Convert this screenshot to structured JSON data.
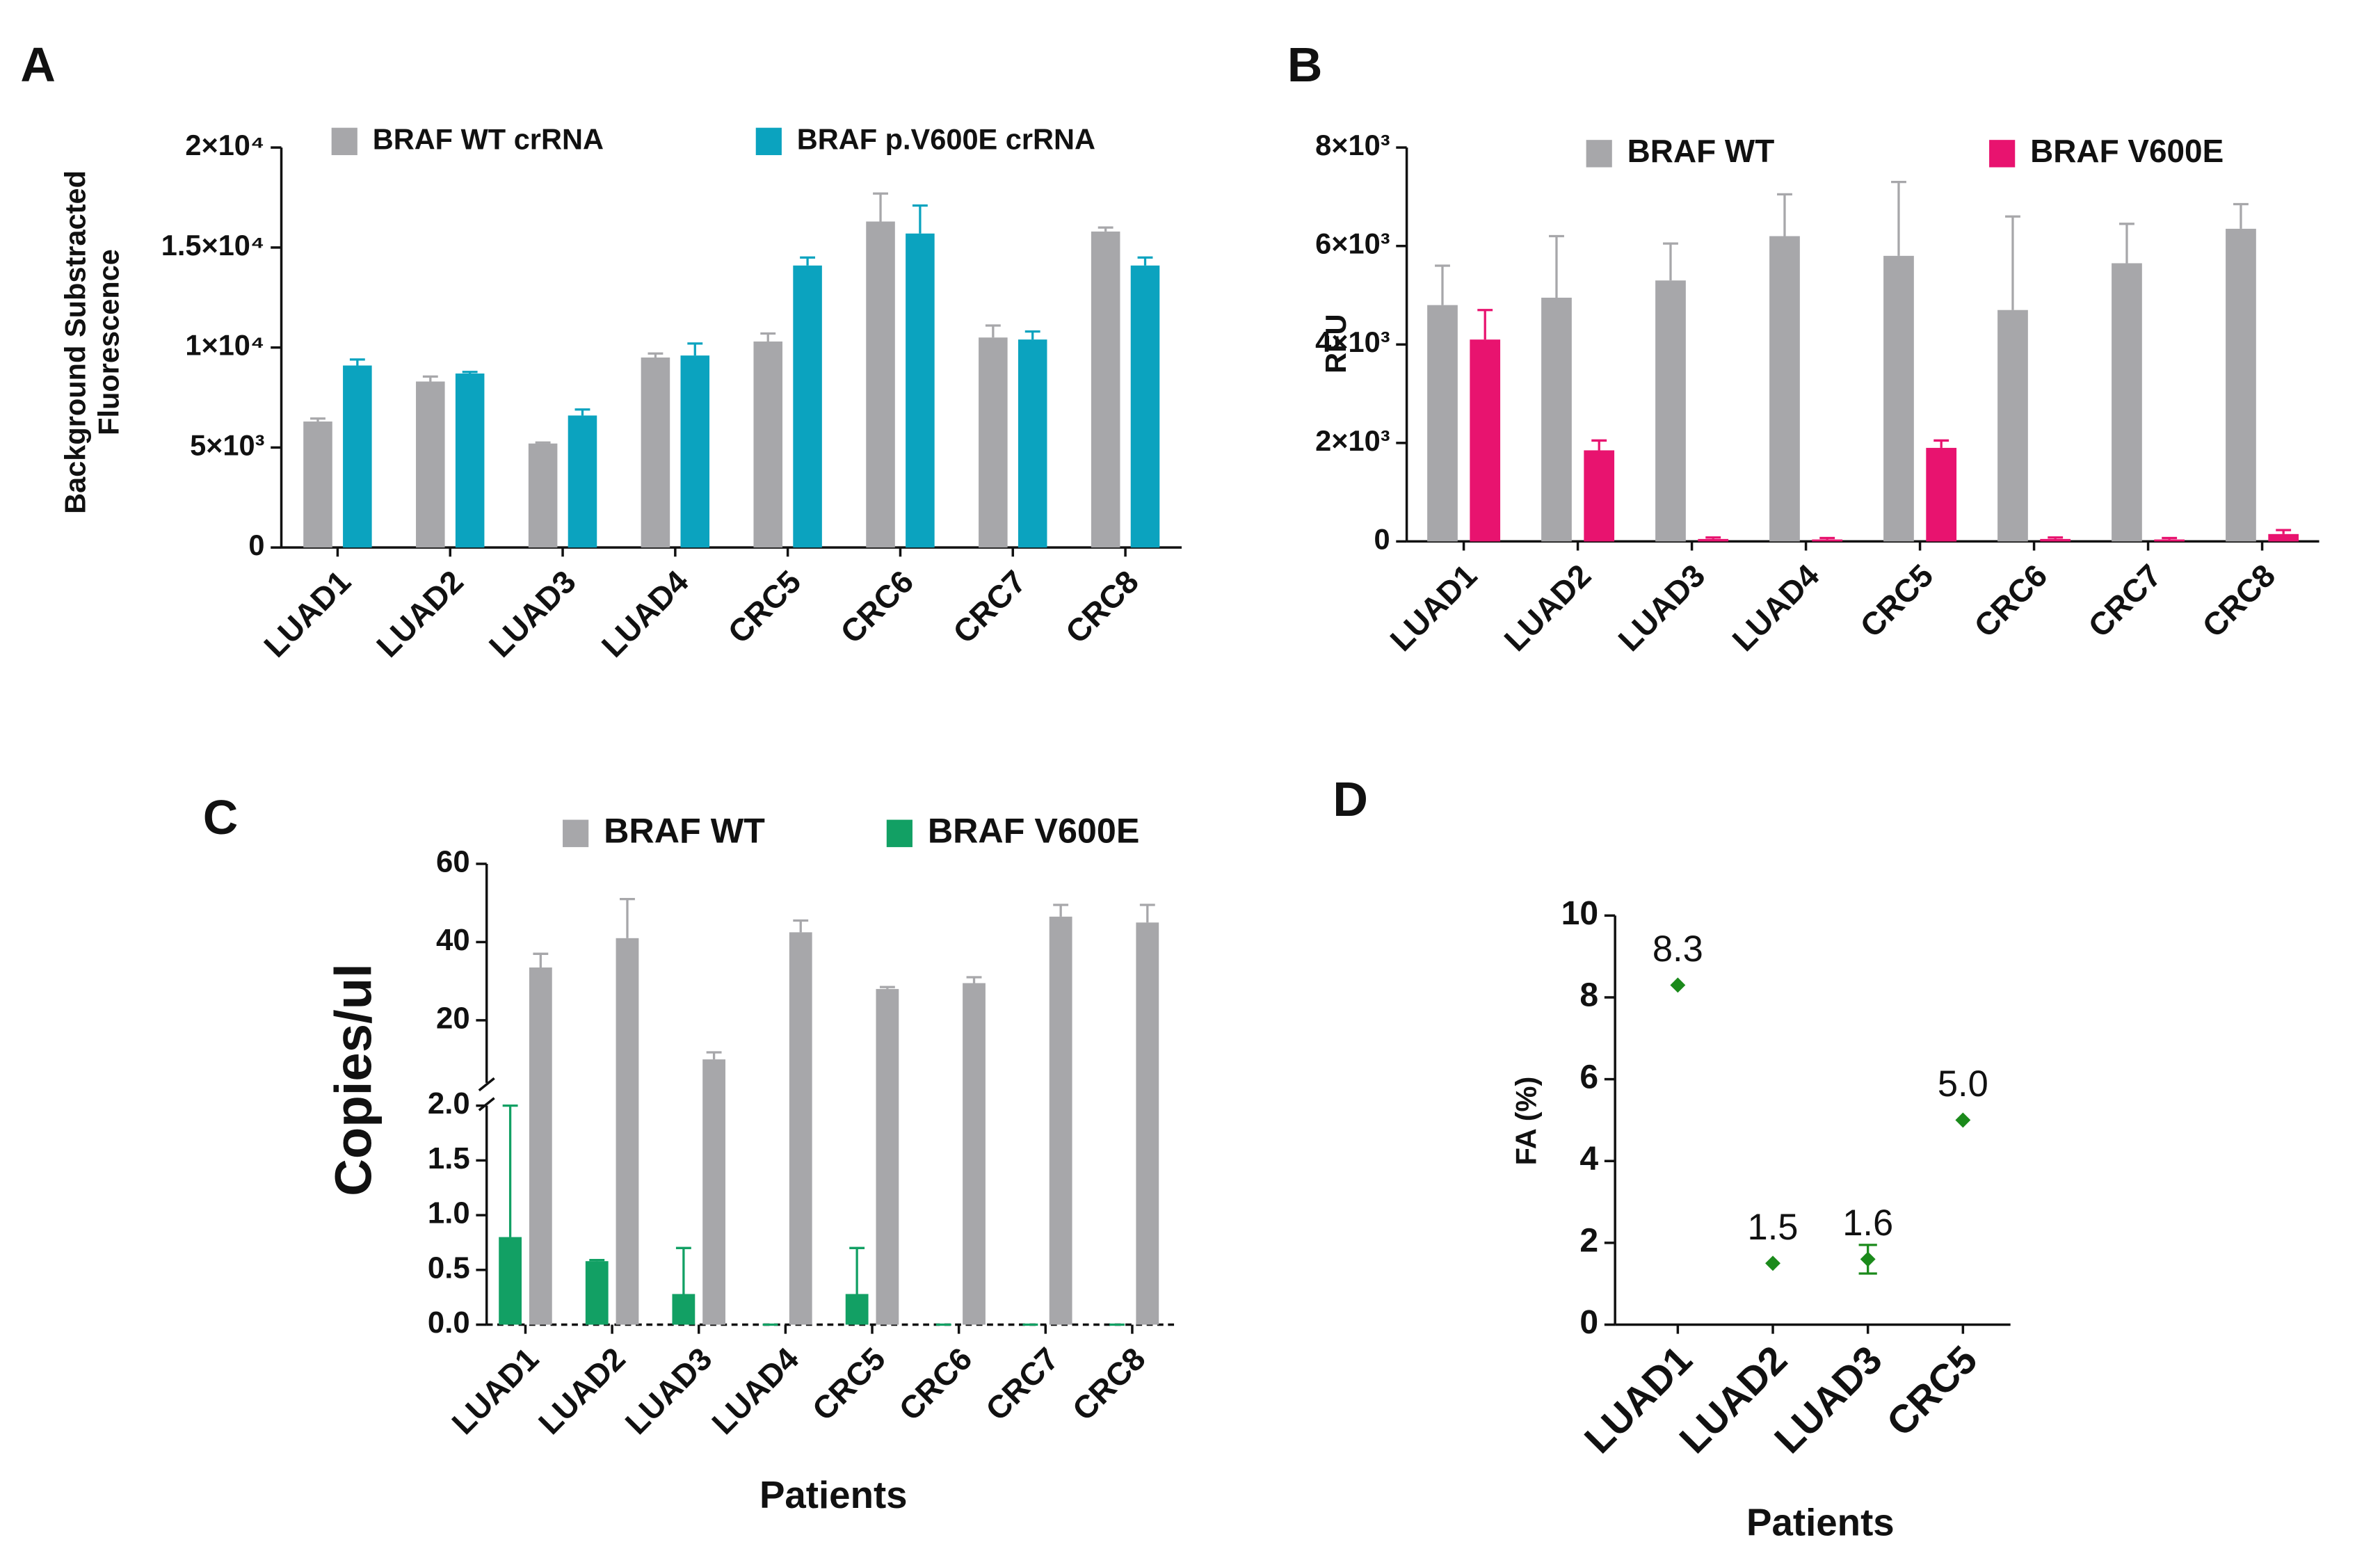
{
  "chart_data": [
    {
      "panel": "A",
      "type": "bar",
      "categories": [
        "LUAD1",
        "LUAD2",
        "LUAD3",
        "LUAD4",
        "CRC5",
        "CRC6",
        "CRC7",
        "CRC8"
      ],
      "series": [
        {
          "name": "BRAF WT crRNA",
          "color": "#a7a7aa",
          "values": [
            6300,
            8300,
            5200,
            9500,
            10300,
            16300,
            10500,
            15800
          ],
          "errors": [
            150,
            250,
            50,
            200,
            400,
            1400,
            600,
            200
          ]
        },
        {
          "name": "BRAF p.V600E crRNA",
          "color": "#0ba3bf",
          "values": [
            9100,
            8700,
            6600,
            9600,
            14100,
            15700,
            10400,
            14100
          ],
          "errors": [
            300,
            80,
            300,
            600,
            400,
            1400,
            400,
            400
          ]
        }
      ],
      "ylabel": [
        "Background Substracted",
        "Fluorescence"
      ],
      "ylim": [
        0,
        20000
      ],
      "yticks": [
        0,
        {
          "value": 5000,
          "label": "5×10³"
        },
        {
          "value": 10000,
          "label": "1×10⁴"
        },
        {
          "value": 15000,
          "label": "1.5×10⁴"
        },
        {
          "value": 20000,
          "label": "2×10⁴"
        }
      ]
    },
    {
      "panel": "B",
      "type": "bar",
      "categories": [
        "LUAD1",
        "LUAD2",
        "LUAD3",
        "LUAD4",
        "CRC5",
        "CRC6",
        "CRC7",
        "CRC8"
      ],
      "series": [
        {
          "name": "BRAF WT",
          "color": "#a7a7aa",
          "values": [
            4800,
            4950,
            5300,
            6200,
            5800,
            4700,
            5650,
            6350
          ],
          "errors": [
            800,
            1250,
            750,
            850,
            1500,
            1900,
            800,
            500
          ]
        },
        {
          "name": "BRAF V600E",
          "color": "#e8136f",
          "values": [
            4100,
            1850,
            50,
            40,
            1900,
            50,
            40,
            150
          ],
          "errors": [
            600,
            200,
            30,
            30,
            150,
            30,
            30,
            80
          ]
        }
      ],
      "ylabel": [
        "RFU"
      ],
      "ylim": [
        0,
        8000
      ],
      "yticks": [
        0,
        {
          "value": 2000,
          "label": "2×10³"
        },
        {
          "value": 4000,
          "label": "4×10³"
        },
        {
          "value": 6000,
          "label": "6×10³"
        },
        {
          "value": 8000,
          "label": "8×10³"
        }
      ]
    },
    {
      "panel": "C",
      "type": "bar",
      "categories": [
        "LUAD1",
        "LUAD2",
        "LUAD3",
        "LUAD4",
        "CRC5",
        "CRC6",
        "CRC7",
        "CRC8"
      ],
      "series": [
        {
          "name": "BRAF WT",
          "color": "#a7a7aa",
          "values": [
            33.5,
            41,
            10,
            42.5,
            28,
            29.5,
            46.5,
            45
          ],
          "errors": [
            3.5,
            10,
            1.8,
            3,
            0.5,
            1.5,
            3,
            4.5
          ]
        },
        {
          "name": "BRAF V600E",
          "color": "#12a064",
          "values": [
            0.8,
            0.58,
            0.28,
            0,
            0.28,
            0,
            0,
            0
          ],
          "errors": [
            1.2,
            0.01,
            0.42,
            0,
            0.42,
            0,
            0,
            0
          ]
        }
      ],
      "ylabel": [
        "Copies/ul"
      ],
      "xlabel": "Patients",
      "ylim": [
        0,
        60
      ],
      "ybreak": [
        2,
        4
      ],
      "yticks": [
        {
          "value": 0,
          "label": "0.0"
        },
        0.5,
        {
          "value": 1,
          "label": "1.0"
        },
        1.5,
        {
          "value": 2,
          "label": "2.0"
        },
        20,
        40,
        60
      ]
    },
    {
      "panel": "D",
      "type": "scatter",
      "categories": [
        "LUAD1",
        "LUAD2",
        "LUAD3",
        "CRC5"
      ],
      "series": [
        {
          "color": "#1b8a1b",
          "values": [
            8.3,
            1.5,
            1.6,
            5
          ],
          "value_labels": [
            "8.3",
            "1.5",
            "1.6",
            "5.0"
          ],
          "errors": [
            0,
            0,
            0.35,
            0
          ]
        }
      ],
      "ylabel": [
        "FA (%)"
      ],
      "xlabel": "Patients",
      "ylim": [
        0,
        10
      ],
      "yticks": [
        0,
        2,
        4,
        6,
        8,
        10
      ]
    }
  ]
}
